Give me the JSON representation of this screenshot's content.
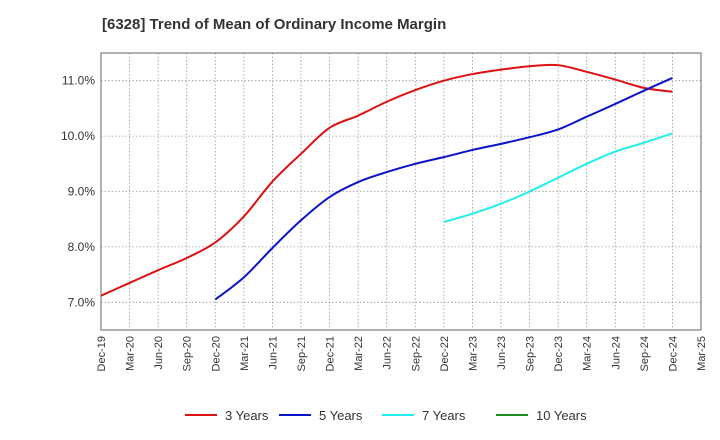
{
  "chart_data": {
    "type": "line",
    "title": "[6328]  Trend of Mean of Ordinary Income Margin",
    "xlabel": "",
    "ylabel": "",
    "y_tick_suffix": "%",
    "ylim": [
      6.5,
      11.5
    ],
    "y_ticks": [
      7.0,
      8.0,
      9.0,
      10.0,
      11.0
    ],
    "x_ticks": [
      "Dec-19",
      "Mar-20",
      "Jun-20",
      "Sep-20",
      "Dec-20",
      "Mar-21",
      "Jun-21",
      "Sep-21",
      "Dec-21",
      "Mar-22",
      "Jun-22",
      "Sep-22",
      "Dec-22",
      "Mar-23",
      "Jun-23",
      "Sep-23",
      "Dec-23",
      "Mar-24",
      "Jun-24",
      "Sep-24",
      "Dec-24",
      "Mar-25"
    ],
    "grid": true,
    "legend_position": "bottom",
    "series": [
      {
        "name": "3 Years",
        "color": "#dd1111",
        "start_index": 0,
        "values": [
          7.12,
          7.35,
          7.58,
          7.8,
          8.08,
          8.55,
          9.18,
          9.68,
          10.15,
          10.37,
          10.62,
          10.83,
          11.0,
          11.12,
          11.2,
          11.26,
          11.28,
          11.16,
          11.02,
          10.87,
          10.8
        ]
      },
      {
        "name": "5 Years",
        "color": "#0a14c8",
        "start_index": 4,
        "values": [
          7.05,
          7.45,
          7.98,
          8.48,
          8.9,
          9.17,
          9.35,
          9.5,
          9.62,
          9.75,
          9.86,
          9.98,
          10.12,
          10.35,
          10.58,
          10.82,
          11.05
        ]
      },
      {
        "name": "7 Years",
        "color": "#22eeee",
        "start_index": 12,
        "values": [
          8.45,
          8.6,
          8.78,
          9.0,
          9.25,
          9.5,
          9.72,
          9.88,
          10.05
        ]
      },
      {
        "name": "10 Years",
        "color": "#1e8c1e",
        "start_index": 0,
        "values": []
      }
    ]
  }
}
